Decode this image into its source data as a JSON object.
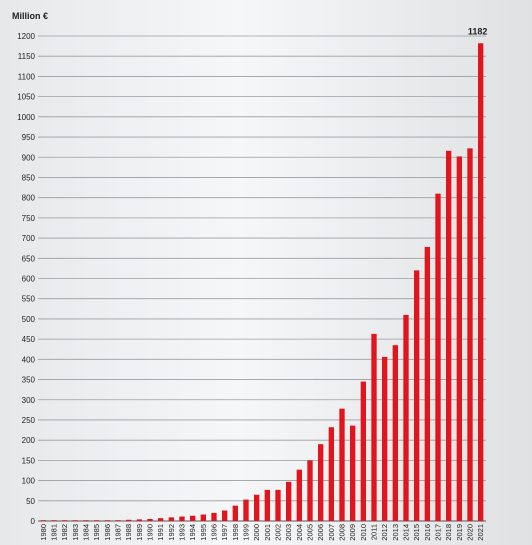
{
  "chart_data": {
    "type": "bar",
    "ylabel": "Million €",
    "ylim": [
      0,
      1200
    ],
    "ytick_step": 50,
    "grid": true,
    "bar_color": "#e2151c",
    "categories": [
      "1980",
      "1981",
      "1982",
      "1983",
      "1984",
      "1985",
      "1986",
      "1987",
      "1988",
      "1989",
      "1990",
      "1991",
      "1992",
      "1993",
      "1994",
      "1995",
      "1996",
      "1997",
      "1998",
      "1999",
      "2000",
      "2001",
      "2002",
      "2003",
      "2004",
      "2005",
      "2006",
      "2007",
      "2008",
      "2009",
      "2010",
      "2011",
      "2012",
      "2013",
      "2014",
      "2015",
      "2016",
      "2017",
      "2018",
      "2019",
      "2020",
      "2021"
    ],
    "values": [
      0.5,
      0.5,
      0.5,
      0.5,
      0.5,
      1,
      1,
      2,
      3,
      4,
      5,
      7,
      9,
      11,
      13,
      16,
      20,
      26,
      38,
      53,
      65,
      77,
      77,
      97,
      127,
      150,
      190,
      232,
      278,
      236,
      345,
      463,
      406,
      435,
      510,
      620,
      678,
      810,
      916,
      902,
      922,
      1182
    ],
    "data_labels": [
      {
        "category": "2021",
        "text": "1182"
      }
    ]
  }
}
